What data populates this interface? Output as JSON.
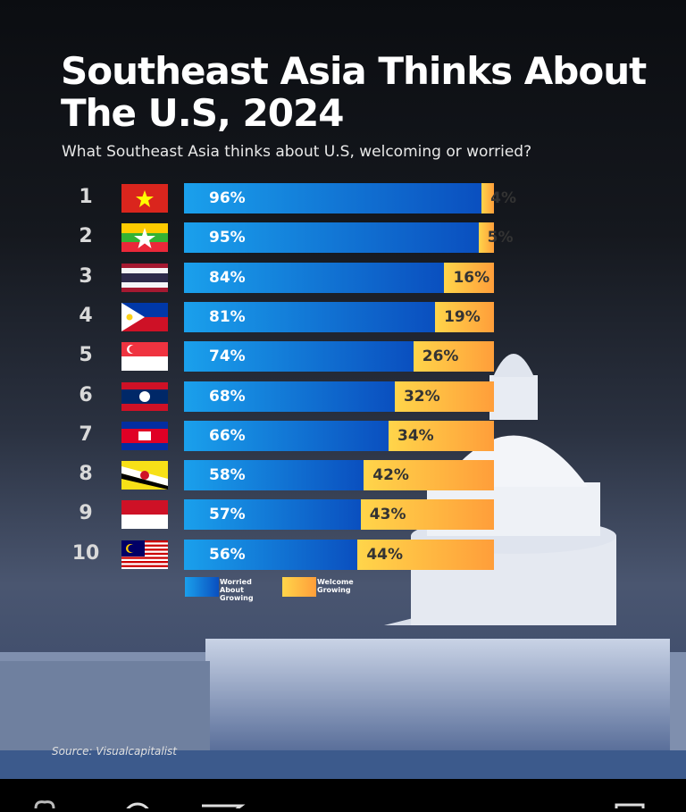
{
  "chart_data": {
    "type": "bar",
    "stacked": true,
    "orientation": "horizontal",
    "title": "Southeast Asia Thinks About The U.S, 2024",
    "subtitle": "What Southeast Asia thinks about U.S, welcoming or worried?",
    "categories": [
      "1",
      "2",
      "3",
      "4",
      "5",
      "6",
      "7",
      "8",
      "9",
      "10"
    ],
    "flags": [
      "vietnam-flag",
      "myanmar-flag",
      "thailand-flag",
      "philippines-flag",
      "singapore-flag",
      "laos-flag",
      "cambodia-flag",
      "brunei-flag",
      "indonesia-flag",
      "malaysia-flag"
    ],
    "series": [
      {
        "name": "Worried About Growing",
        "color": "#0a6fd8",
        "values": [
          96,
          95,
          84,
          81,
          74,
          68,
          66,
          58,
          57,
          56
        ]
      },
      {
        "name": "Welcome Growing",
        "color": "#ffb640",
        "values": [
          4,
          5,
          16,
          19,
          26,
          32,
          34,
          42,
          43,
          44
        ]
      }
    ],
    "labels": {
      "worried": [
        "96%",
        "95%",
        "84%",
        "81%",
        "74%",
        "68%",
        "66%",
        "58%",
        "57%",
        "56%"
      ],
      "welcome": [
        "4%",
        "5%",
        "16%",
        "19%",
        "26%",
        "32%",
        "34%",
        "42%",
        "43%",
        "44%"
      ]
    },
    "xlim": [
      0,
      100
    ],
    "legend_position": "bottom-left",
    "source": "Source: Visualcapitalist"
  },
  "legend": {
    "worried": "Worried About Growing",
    "welcome": "Welcome Growing"
  },
  "bottom_bar": {
    "icons": [
      "heart-icon",
      "comment-icon",
      "send-icon",
      "bookmark-icon"
    ]
  }
}
